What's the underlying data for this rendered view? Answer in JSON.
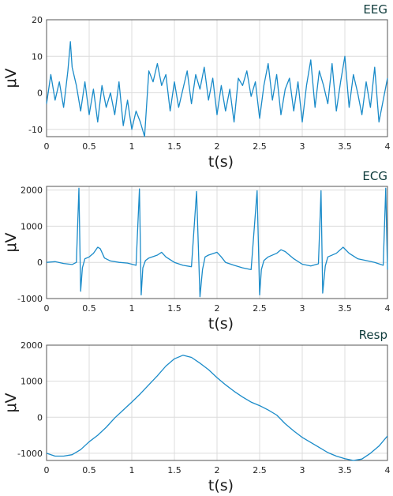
{
  "chart_data": [
    {
      "type": "line",
      "title": "EEG",
      "xlabel": "t(s)",
      "ylabel": "μV",
      "xlim": [
        0,
        4
      ],
      "ylim": [
        -12,
        20
      ],
      "xticks": [
        "0",
        "0.5",
        "1",
        "1.5",
        "2",
        "2.5",
        "3",
        "3.5",
        "4"
      ],
      "yticks": [
        "-10",
        "0",
        "10",
        "20"
      ],
      "grid": true,
      "color": "#1a8bc9",
      "series": [
        {
          "x": [
            0,
            0.05,
            0.1,
            0.15,
            0.2,
            0.25,
            0.28,
            0.3,
            0.35,
            0.4,
            0.45,
            0.5,
            0.55,
            0.6,
            0.65,
            0.7,
            0.75,
            0.8,
            0.85,
            0.9,
            0.95,
            1.0,
            1.05,
            1.1,
            1.15,
            1.2,
            1.25,
            1.3,
            1.35,
            1.4,
            1.45,
            1.5,
            1.55,
            1.6,
            1.65,
            1.7,
            1.75,
            1.8,
            1.85,
            1.9,
            1.95,
            2.0,
            2.05,
            2.1,
            2.15,
            2.2,
            2.25,
            2.3,
            2.35,
            2.4,
            2.45,
            2.5,
            2.55,
            2.6,
            2.65,
            2.7,
            2.75,
            2.8,
            2.85,
            2.9,
            2.95,
            3.0,
            3.05,
            3.1,
            3.15,
            3.2,
            3.25,
            3.3,
            3.35,
            3.4,
            3.45,
            3.5,
            3.55,
            3.6,
            3.65,
            3.7,
            3.75,
            3.8,
            3.85,
            3.9,
            3.95,
            4.0
          ],
          "y": [
            -3,
            5,
            -2,
            3,
            -4,
            6,
            14,
            7,
            2,
            -5,
            3,
            -6,
            1,
            -8,
            2,
            -4,
            0,
            -6,
            3,
            -9,
            -2,
            -10,
            -5,
            -8,
            -12,
            6,
            3,
            8,
            2,
            5,
            -5,
            3,
            -4,
            1,
            6,
            -3,
            5,
            1,
            7,
            -2,
            4,
            -6,
            2,
            -5,
            1,
            -8,
            4,
            2,
            6,
            -1,
            3,
            -7,
            2,
            8,
            -2,
            5,
            -6,
            1,
            4,
            -5,
            3,
            -8,
            2,
            9,
            -4,
            6,
            2,
            -3,
            8,
            -5,
            3,
            10,
            -4,
            5,
            0,
            -6,
            3,
            -4,
            7,
            -8,
            -2,
            4
          ]
        }
      ]
    },
    {
      "type": "line",
      "title": "ECG",
      "xlabel": "t(s)",
      "ylabel": "μV",
      "xlim": [
        0,
        4
      ],
      "ylim": [
        -1000,
        2100
      ],
      "xticks": [
        "0",
        "0.5",
        "1",
        "1.5",
        "2",
        "2.5",
        "3",
        "3.5",
        "4"
      ],
      "yticks": [
        "-1000",
        "0",
        "1000",
        "2000"
      ],
      "grid": true,
      "color": "#1a8bc9",
      "series": [
        {
          "x": [
            0,
            0.1,
            0.2,
            0.3,
            0.35,
            0.38,
            0.4,
            0.42,
            0.45,
            0.5,
            0.55,
            0.6,
            0.63,
            0.68,
            0.75,
            0.85,
            0.95,
            1.05,
            1.09,
            1.11,
            1.13,
            1.16,
            1.2,
            1.3,
            1.35,
            1.4,
            1.5,
            1.6,
            1.7,
            1.76,
            1.8,
            1.83,
            1.86,
            1.9,
            2.0,
            2.05,
            2.1,
            2.2,
            2.3,
            2.4,
            2.47,
            2.5,
            2.52,
            2.55,
            2.6,
            2.7,
            2.75,
            2.8,
            2.9,
            3.0,
            3.1,
            3.19,
            3.22,
            3.24,
            3.27,
            3.3,
            3.4,
            3.48,
            3.55,
            3.65,
            3.75,
            3.85,
            3.95,
            3.98,
            4.0
          ],
          "y": [
            0,
            20,
            -30,
            -60,
            0,
            2050,
            -800,
            -150,
            100,
            150,
            250,
            420,
            380,
            120,
            40,
            0,
            -20,
            -80,
            2030,
            -900,
            -150,
            50,
            120,
            200,
            280,
            150,
            0,
            -80,
            -120,
            1960,
            -950,
            -200,
            150,
            200,
            280,
            150,
            0,
            -80,
            -150,
            -200,
            1980,
            -900,
            -200,
            50,
            150,
            250,
            350,
            300,
            100,
            -50,
            -100,
            -40,
            1980,
            -850,
            -100,
            150,
            250,
            420,
            250,
            100,
            50,
            0,
            -80,
            2050,
            -200
          ]
        }
      ]
    },
    {
      "type": "line",
      "title": "Resp",
      "xlabel": "t(s)",
      "ylabel": "μV",
      "xlim": [
        0,
        4
      ],
      "ylim": [
        -1200,
        2000
      ],
      "xticks": [
        "0",
        "0.5",
        "1",
        "1.5",
        "2",
        "2.5",
        "3",
        "3.5",
        "4"
      ],
      "yticks": [
        "-1000",
        "0",
        "1000",
        "2000"
      ],
      "grid": true,
      "color": "#1a8bc9",
      "series": [
        {
          "x": [
            0,
            0.1,
            0.2,
            0.3,
            0.4,
            0.5,
            0.6,
            0.7,
            0.8,
            0.9,
            1.0,
            1.1,
            1.2,
            1.3,
            1.4,
            1.5,
            1.6,
            1.7,
            1.8,
            1.9,
            2.0,
            2.1,
            2.2,
            2.3,
            2.4,
            2.5,
            2.6,
            2.7,
            2.8,
            2.9,
            3.0,
            3.1,
            3.2,
            3.3,
            3.4,
            3.5,
            3.6,
            3.7,
            3.8,
            3.9,
            4.0
          ],
          "y": [
            -1000,
            -1080,
            -1080,
            -1040,
            -900,
            -680,
            -500,
            -280,
            -20,
            200,
            420,
            650,
            900,
            1150,
            1420,
            1620,
            1720,
            1660,
            1500,
            1320,
            1100,
            900,
            720,
            560,
            420,
            320,
            200,
            60,
            -180,
            -380,
            -560,
            -700,
            -840,
            -980,
            -1080,
            -1150,
            -1200,
            -1160,
            -1000,
            -800,
            -520
          ]
        }
      ]
    }
  ]
}
